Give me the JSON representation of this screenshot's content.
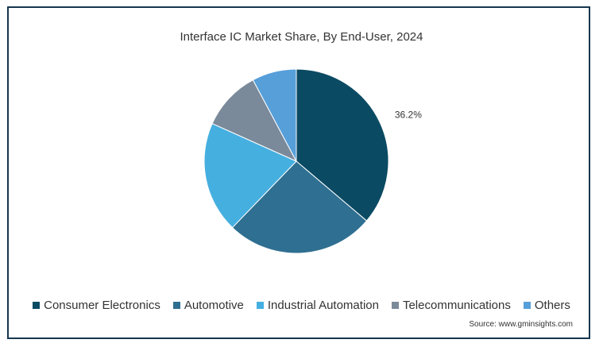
{
  "chart_data": {
    "type": "pie",
    "title": "Interface IC Market Share, By End-User, 2024",
    "categories": [
      "Consumer Electronics",
      "Automotive",
      "Industrial Automation",
      "Telecommunications",
      "Others"
    ],
    "values": [
      36.2,
      26,
      19.5,
      10.5,
      7.8
    ],
    "colors": [
      "#0b4a63",
      "#2f6f91",
      "#45afe0",
      "#7b8a9a",
      "#579fd9"
    ],
    "data_labels": [
      "36.2%",
      "",
      "",
      "",
      ""
    ],
    "legend_position": "bottom"
  },
  "source": "Source: www.gminsights.com"
}
